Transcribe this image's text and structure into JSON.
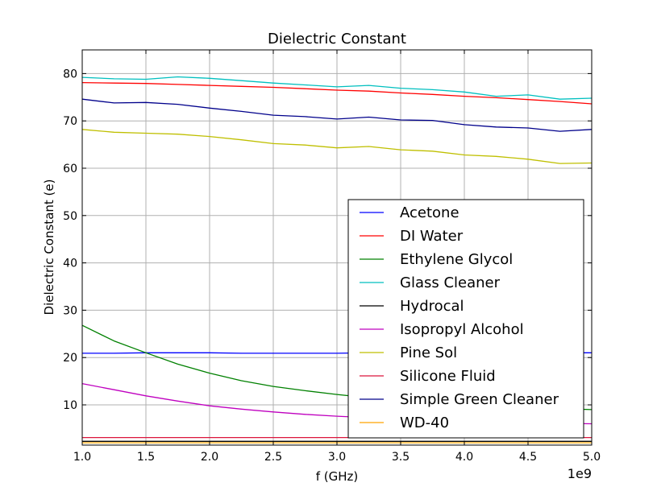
{
  "chart_data": {
    "type": "line",
    "title": "Dielectric Constant",
    "xlabel": "f (GHz)",
    "ylabel": "Dielectric Constant (e)",
    "x_offset_label": "1e9",
    "xlim": [
      1.0,
      5.0
    ],
    "ylim": [
      1.5,
      85
    ],
    "xticks": [
      1.0,
      1.5,
      2.0,
      2.5,
      3.0,
      3.5,
      4.0,
      4.5,
      5.0
    ],
    "xtick_labels": [
      "1.0",
      "1.5",
      "2.0",
      "2.5",
      "3.0",
      "3.5",
      "4.0",
      "4.5",
      "5.0"
    ],
    "yticks": [
      10,
      20,
      30,
      40,
      50,
      60,
      70,
      80
    ],
    "ytick_labels": [
      "10",
      "20",
      "30",
      "40",
      "50",
      "60",
      "70",
      "80"
    ],
    "grid": true,
    "legend_position": "lower-right",
    "x": [
      1.0,
      1.25,
      1.5,
      1.75,
      2.0,
      2.25,
      2.5,
      2.75,
      3.0,
      3.25,
      3.5,
      3.75,
      4.0,
      4.25,
      4.5,
      4.75,
      5.0
    ],
    "series": [
      {
        "name": "Acetone",
        "color": "#0000ff",
        "values": [
          20.9,
          20.9,
          21.0,
          21.0,
          21.0,
          20.9,
          20.9,
          20.9,
          20.9,
          21.0,
          21.0,
          21.0,
          21.0,
          21.1,
          21.1,
          21.0,
          21.0
        ]
      },
      {
        "name": "DI Water",
        "color": "#ff0000",
        "values": [
          78.1,
          78.0,
          77.9,
          77.7,
          77.5,
          77.3,
          77.1,
          76.8,
          76.5,
          76.3,
          75.9,
          75.6,
          75.2,
          74.9,
          74.5,
          74.1,
          73.6
        ]
      },
      {
        "name": "Ethylene Glycol",
        "color": "#008000",
        "values": [
          26.8,
          23.5,
          21.0,
          18.6,
          16.7,
          15.1,
          13.9,
          13.0,
          12.2,
          11.5,
          11.0,
          10.5,
          10.1,
          9.8,
          9.5,
          9.2,
          9.0
        ]
      },
      {
        "name": "Glass Cleaner",
        "color": "#00bfbf",
        "values": [
          79.2,
          78.9,
          78.8,
          79.3,
          79.0,
          78.5,
          78.0,
          77.6,
          77.2,
          77.5,
          76.9,
          76.6,
          76.1,
          75.2,
          75.5,
          74.6,
          74.8
        ]
      },
      {
        "name": "Hydrocal",
        "color": "#000000",
        "values": [
          2.3,
          2.3,
          2.3,
          2.3,
          2.3,
          2.3,
          2.3,
          2.3,
          2.3,
          2.3,
          2.3,
          2.3,
          2.3,
          2.3,
          2.3,
          2.3,
          2.3
        ]
      },
      {
        "name": "Isopropyl Alcohol",
        "color": "#bf00bf",
        "values": [
          14.5,
          13.2,
          11.9,
          10.8,
          9.8,
          9.1,
          8.5,
          8.0,
          7.6,
          7.3,
          7.0,
          6.8,
          6.6,
          6.4,
          6.3,
          6.1,
          6.0
        ]
      },
      {
        "name": "Pine Sol",
        "color": "#bfbf00",
        "values": [
          68.2,
          67.6,
          67.4,
          67.2,
          66.7,
          66.0,
          65.2,
          64.9,
          64.3,
          64.6,
          63.9,
          63.6,
          62.8,
          62.5,
          61.9,
          61.0,
          61.1
        ]
      },
      {
        "name": "Silicone Fluid",
        "color": "#dc143c",
        "values": [
          3.1,
          3.1,
          3.1,
          3.1,
          3.1,
          3.1,
          3.1,
          3.1,
          3.1,
          3.1,
          3.1,
          3.1,
          3.1,
          3.1,
          3.1,
          3.1,
          3.1
        ]
      },
      {
        "name": "Simple Green Cleaner",
        "color": "#00008b",
        "values": [
          74.6,
          73.8,
          73.9,
          73.5,
          72.7,
          72.0,
          71.2,
          70.9,
          70.4,
          70.8,
          70.2,
          70.1,
          69.2,
          68.7,
          68.5,
          67.8,
          68.2
        ]
      },
      {
        "name": "WD-40",
        "color": "#ffa500",
        "values": [
          2.0,
          2.0,
          2.0,
          2.0,
          2.0,
          2.0,
          2.0,
          2.0,
          2.0,
          2.0,
          2.0,
          2.0,
          2.0,
          2.0,
          2.0,
          2.0,
          2.0
        ]
      }
    ]
  }
}
